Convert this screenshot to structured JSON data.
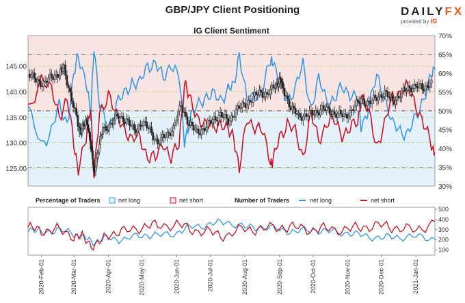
{
  "chart_title": "GBP/JPY Client Positioning",
  "brand": {
    "name_a": "DAILY",
    "name_b": "FX",
    "provided_by": "provided by",
    "provider": "IG"
  },
  "colors": {
    "net_long": "#3399e6",
    "net_short": "#cc1122",
    "price": "#222222",
    "bg_short_zone": "#f9e4e4",
    "bg_long_zone": "#e4f1fb"
  },
  "chart_data": [
    {
      "type": "line",
      "title": "IG Client Sentiment",
      "y_left": {
        "ticks": [
          125,
          130,
          135,
          140,
          145
        ],
        "tick_labels": [
          "125.00",
          "130.00",
          "135.00",
          "140.00",
          "145.00"
        ],
        "range": [
          121.5,
          151
        ]
      },
      "y_right": {
        "ticks": [
          30,
          35,
          40,
          45,
          50,
          55,
          60,
          65,
          70
        ],
        "tick_labels": [
          "30%",
          "35%",
          "40%",
          "45%",
          "50%",
          "55%",
          "60%",
          "65%",
          "70%"
        ],
        "range": [
          30,
          70
        ]
      },
      "x_dates": [
        "2020-01-20",
        "2021-01-18"
      ],
      "series": [
        {
          "name": "GBP/JPY",
          "axis": "left",
          "style": "candlestick",
          "points": [
            [
              "2020-01-20",
              143.5
            ],
            [
              "2020-01-27",
              142.3
            ],
            [
              "2020-02-03",
              141.5
            ],
            [
              "2020-02-10",
              142.9
            ],
            [
              "2020-02-17",
              143.6
            ],
            [
              "2020-02-21",
              144.6
            ],
            [
              "2020-02-28",
              138.5
            ],
            [
              "2020-03-06",
              132.2
            ],
            [
              "2020-03-09",
              133.2
            ],
            [
              "2020-03-13",
              134.0
            ],
            [
              "2020-03-17",
              128.5
            ],
            [
              "2020-03-19",
              124.0
            ],
            [
              "2020-03-23",
              128.8
            ],
            [
              "2020-03-27",
              132.7
            ],
            [
              "2020-04-03",
              133.6
            ],
            [
              "2020-04-10",
              135.3
            ],
            [
              "2020-04-17",
              134.3
            ],
            [
              "2020-04-24",
              132.4
            ],
            [
              "2020-05-01",
              133.9
            ],
            [
              "2020-05-08",
              132.5
            ],
            [
              "2020-05-15",
              129.9
            ],
            [
              "2020-05-22",
              131.4
            ],
            [
              "2020-05-29",
              132.8
            ],
            [
              "2020-06-05",
              137.4
            ],
            [
              "2020-06-12",
              133.6
            ],
            [
              "2020-06-19",
              132.1
            ],
            [
              "2020-06-26",
              132.8
            ],
            [
              "2020-07-03",
              134.5
            ],
            [
              "2020-07-10",
              135.5
            ],
            [
              "2020-07-17",
              134.1
            ],
            [
              "2020-07-24",
              136.3
            ],
            [
              "2020-07-31",
              137.4
            ],
            [
              "2020-08-07",
              138.5
            ],
            [
              "2020-08-14",
              139.9
            ],
            [
              "2020-08-21",
              139.4
            ],
            [
              "2020-08-28",
              141.1
            ],
            [
              "2020-09-01",
              142.3
            ],
            [
              "2020-09-04",
              140.8
            ],
            [
              "2020-09-11",
              136.8
            ],
            [
              "2020-09-18",
              135.2
            ],
            [
              "2020-09-25",
              135.4
            ],
            [
              "2020-10-02",
              135.8
            ],
            [
              "2020-10-09",
              136.7
            ],
            [
              "2020-10-16",
              136.1
            ],
            [
              "2020-10-23",
              135.6
            ],
            [
              "2020-10-30",
              135.1
            ],
            [
              "2020-11-06",
              136.8
            ],
            [
              "2020-11-13",
              138.4
            ],
            [
              "2020-11-20",
              137.7
            ],
            [
              "2020-11-27",
              138.9
            ],
            [
              "2020-12-04",
              139.8
            ],
            [
              "2020-12-11",
              138.1
            ],
            [
              "2020-12-18",
              139.4
            ],
            [
              "2020-12-25",
              140.7
            ],
            [
              "2021-01-01",
              141.1
            ],
            [
              "2021-01-08",
              140.6
            ],
            [
              "2021-01-15",
              142.3
            ]
          ]
        },
        {
          "name": "net long",
          "axis": "right",
          "points": [
            [
              "2020-01-20",
              50
            ],
            [
              "2020-02-01",
              41
            ],
            [
              "2020-02-10",
              45
            ],
            [
              "2020-02-17",
              51
            ],
            [
              "2020-02-24",
              47
            ],
            [
              "2020-03-01",
              59
            ],
            [
              "2020-03-05",
              65
            ],
            [
              "2020-03-12",
              58
            ],
            [
              "2020-03-16",
              48
            ],
            [
              "2020-03-19",
              68
            ],
            [
              "2020-03-24",
              51
            ],
            [
              "2020-04-01",
              45
            ],
            [
              "2020-04-08",
              52
            ],
            [
              "2020-04-15",
              54
            ],
            [
              "2020-04-22",
              58
            ],
            [
              "2020-04-29",
              57
            ],
            [
              "2020-05-06",
              62
            ],
            [
              "2020-05-13",
              63
            ],
            [
              "2020-05-20",
              58
            ],
            [
              "2020-05-27",
              63
            ],
            [
              "2020-06-03",
              59
            ],
            [
              "2020-06-08",
              42
            ],
            [
              "2020-06-12",
              47
            ],
            [
              "2020-06-19",
              51
            ],
            [
              "2020-06-26",
              54
            ],
            [
              "2020-07-03",
              54
            ],
            [
              "2020-07-10",
              53
            ],
            [
              "2020-07-17",
              56
            ],
            [
              "2020-07-22",
              56
            ],
            [
              "2020-07-27",
              66
            ],
            [
              "2020-08-03",
              52
            ],
            [
              "2020-08-10",
              54
            ],
            [
              "2020-08-17",
              56
            ],
            [
              "2020-08-24",
              63
            ],
            [
              "2020-08-26",
              64
            ],
            [
              "2020-09-01",
              57
            ],
            [
              "2020-09-08",
              53
            ],
            [
              "2020-09-15",
              56
            ],
            [
              "2020-09-22",
              62
            ],
            [
              "2020-09-29",
              51
            ],
            [
              "2020-10-06",
              58
            ],
            [
              "2020-10-13",
              53
            ],
            [
              "2020-10-20",
              53
            ],
            [
              "2020-10-27",
              56
            ],
            [
              "2020-11-03",
              55
            ],
            [
              "2020-11-10",
              53
            ],
            [
              "2020-11-13",
              46
            ],
            [
              "2020-11-20",
              51
            ],
            [
              "2020-11-27",
              59
            ],
            [
              "2020-12-04",
              54
            ],
            [
              "2020-12-11",
              46
            ],
            [
              "2020-12-18",
              45
            ],
            [
              "2020-12-25",
              44
            ],
            [
              "2021-01-01",
              48
            ],
            [
              "2021-01-08",
              54
            ],
            [
              "2021-01-15",
              59
            ],
            [
              "2021-01-18",
              61
            ]
          ]
        },
        {
          "name": "net short",
          "axis": "right",
          "points": [
            [
              "2020-01-20",
              50
            ],
            [
              "2020-02-01",
              59
            ],
            [
              "2020-02-10",
              55
            ],
            [
              "2020-02-17",
              49
            ],
            [
              "2020-02-24",
              53
            ],
            [
              "2020-03-01",
              41
            ],
            [
              "2020-03-05",
              35
            ],
            [
              "2020-03-12",
              42
            ],
            [
              "2020-03-16",
              52
            ],
            [
              "2020-03-19",
              32
            ],
            [
              "2020-03-24",
              49
            ],
            [
              "2020-04-01",
              55
            ],
            [
              "2020-04-08",
              48
            ],
            [
              "2020-04-15",
              46
            ],
            [
              "2020-04-22",
              42
            ],
            [
              "2020-04-29",
              43
            ],
            [
              "2020-05-06",
              38
            ],
            [
              "2020-05-13",
              37
            ],
            [
              "2020-05-20",
              42
            ],
            [
              "2020-05-27",
              37
            ],
            [
              "2020-06-03",
              41
            ],
            [
              "2020-06-08",
              58
            ],
            [
              "2020-06-12",
              53
            ],
            [
              "2020-06-19",
              49
            ],
            [
              "2020-06-26",
              46
            ],
            [
              "2020-07-03",
              46
            ],
            [
              "2020-07-10",
              47
            ],
            [
              "2020-07-17",
              44
            ],
            [
              "2020-07-22",
              44
            ],
            [
              "2020-07-27",
              34
            ],
            [
              "2020-08-03",
              48
            ],
            [
              "2020-08-10",
              46
            ],
            [
              "2020-08-17",
              44
            ],
            [
              "2020-08-24",
              37
            ],
            [
              "2020-08-26",
              36
            ],
            [
              "2020-09-01",
              43
            ],
            [
              "2020-09-08",
              47
            ],
            [
              "2020-09-15",
              44
            ],
            [
              "2020-09-22",
              38
            ],
            [
              "2020-09-29",
              49
            ],
            [
              "2020-10-06",
              42
            ],
            [
              "2020-10-13",
              47
            ],
            [
              "2020-10-20",
              47
            ],
            [
              "2020-10-27",
              44
            ],
            [
              "2020-11-03",
              45
            ],
            [
              "2020-11-10",
              47
            ],
            [
              "2020-11-13",
              54
            ],
            [
              "2020-11-20",
              49
            ],
            [
              "2020-11-27",
              41
            ],
            [
              "2020-12-04",
              46
            ],
            [
              "2020-12-11",
              54
            ],
            [
              "2020-12-18",
              55
            ],
            [
              "2020-12-25",
              56
            ],
            [
              "2021-01-01",
              52
            ],
            [
              "2021-01-08",
              46
            ],
            [
              "2021-01-15",
              41
            ],
            [
              "2021-01-18",
              39
            ]
          ]
        }
      ],
      "reference_lines_pct": [
        35,
        50,
        65
      ]
    },
    {
      "type": "line",
      "panel": "positioning",
      "legend": {
        "pct_title": "Percentage of Traders",
        "pct_long": "net long",
        "pct_short": "net short",
        "num_title": "Number of Traders",
        "num_long": "net long",
        "num_short": "net short"
      },
      "y_right": {
        "ticks": [
          100,
          200,
          300,
          400,
          500
        ],
        "tick_labels": [
          "100",
          "200",
          "300",
          "400",
          "500"
        ],
        "range": [
          50,
          520
        ]
      },
      "x_tick_labels": [
        "2020-Feb-01",
        "2020-Mar-01",
        "2020-Apr-01",
        "2020-May-01",
        "2020-Jun-01",
        "2020-Jul-01",
        "2020-Aug-01",
        "2020-Sep-01",
        "2020-Oct-01",
        "2020-Nov-01",
        "2020-Dec-01",
        "2021-Jan-01"
      ],
      "x_ticks": [
        "2020-02-01",
        "2020-03-01",
        "2020-04-01",
        "2020-05-01",
        "2020-06-01",
        "2020-07-01",
        "2020-08-01",
        "2020-09-01",
        "2020-10-01",
        "2020-11-01",
        "2020-12-01",
        "2021-01-01"
      ],
      "series": [
        {
          "name": "net long",
          "points": [
            [
              "2020-01-20",
              310
            ],
            [
              "2020-02-01",
              270
            ],
            [
              "2020-02-15",
              300
            ],
            [
              "2020-03-01",
              260
            ],
            [
              "2020-03-10",
              220
            ],
            [
              "2020-03-20",
              180
            ],
            [
              "2020-04-01",
              220
            ],
            [
              "2020-04-15",
              200
            ],
            [
              "2020-05-01",
              250
            ],
            [
              "2020-05-15",
              240
            ],
            [
              "2020-06-01",
              270
            ],
            [
              "2020-06-15",
              330
            ],
            [
              "2020-07-01",
              350
            ],
            [
              "2020-07-15",
              380
            ],
            [
              "2020-08-01",
              320
            ],
            [
              "2020-08-15",
              330
            ],
            [
              "2020-09-01",
              300
            ],
            [
              "2020-09-15",
              280
            ],
            [
              "2020-10-01",
              300
            ],
            [
              "2020-10-15",
              280
            ],
            [
              "2020-11-01",
              270
            ],
            [
              "2020-11-15",
              240
            ],
            [
              "2020-12-01",
              220
            ],
            [
              "2020-12-15",
              230
            ],
            [
              "2021-01-01",
              230
            ],
            [
              "2021-01-18",
              210
            ]
          ]
        },
        {
          "name": "net short",
          "points": [
            [
              "2020-01-20",
              320
            ],
            [
              "2020-02-01",
              290
            ],
            [
              "2020-02-15",
              300
            ],
            [
              "2020-03-01",
              240
            ],
            [
              "2020-03-10",
              220
            ],
            [
              "2020-03-20",
              130
            ],
            [
              "2020-04-01",
              260
            ],
            [
              "2020-04-15",
              280
            ],
            [
              "2020-05-01",
              330
            ],
            [
              "2020-05-15",
              340
            ],
            [
              "2020-06-01",
              350
            ],
            [
              "2020-06-15",
              300
            ],
            [
              "2020-07-01",
              270
            ],
            [
              "2020-07-15",
              240
            ],
            [
              "2020-08-01",
              310
            ],
            [
              "2020-08-15",
              300
            ],
            [
              "2020-09-01",
              330
            ],
            [
              "2020-09-15",
              320
            ],
            [
              "2020-10-01",
              300
            ],
            [
              "2020-10-15",
              310
            ],
            [
              "2020-11-01",
              300
            ],
            [
              "2020-11-15",
              330
            ],
            [
              "2020-12-01",
              340
            ],
            [
              "2020-12-15",
              320
            ],
            [
              "2021-01-01",
              290
            ],
            [
              "2021-01-18",
              380
            ]
          ]
        }
      ]
    }
  ]
}
